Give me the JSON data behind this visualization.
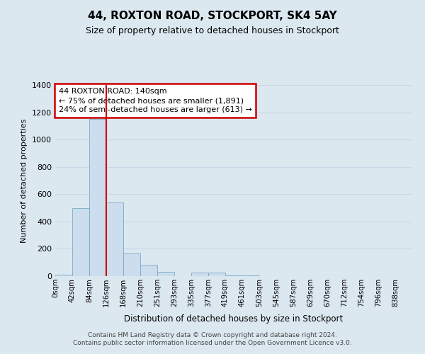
{
  "title": "44, ROXTON ROAD, STOCKPORT, SK4 5AY",
  "subtitle": "Size of property relative to detached houses in Stockport",
  "xlabel": "Distribution of detached houses by size in Stockport",
  "ylabel": "Number of detached properties",
  "bar_labels": [
    "0sqm",
    "42sqm",
    "84sqm",
    "126sqm",
    "168sqm",
    "210sqm",
    "251sqm",
    "293sqm",
    "335sqm",
    "377sqm",
    "419sqm",
    "461sqm",
    "503sqm",
    "545sqm",
    "587sqm",
    "629sqm",
    "670sqm",
    "712sqm",
    "754sqm",
    "796sqm",
    "838sqm"
  ],
  "bar_values": [
    10,
    500,
    1150,
    540,
    165,
    85,
    30,
    0,
    25,
    25,
    5,
    5,
    0,
    0,
    0,
    0,
    0,
    0,
    0,
    0,
    0
  ],
  "bar_color": "#ccdded",
  "bar_edge_color": "#7aaac8",
  "vline_x": 3,
  "vline_color": "#cc0000",
  "annotation_title": "44 ROXTON ROAD: 140sqm",
  "annotation_line1": "← 75% of detached houses are smaller (1,891)",
  "annotation_line2": "24% of semi-detached houses are larger (613) →",
  "annotation_box_color": "#cc0000",
  "annotation_text_color": "#000000",
  "annotation_bg_color": "#ffffff",
  "ylim": [
    0,
    1400
  ],
  "yticks": [
    0,
    200,
    400,
    600,
    800,
    1000,
    1200,
    1400
  ],
  "grid_color": "#c8d8e8",
  "background_color": "#dce8f0",
  "footer1": "Contains HM Land Registry data © Crown copyright and database right 2024.",
  "footer2": "Contains public sector information licensed under the Open Government Licence v3.0."
}
